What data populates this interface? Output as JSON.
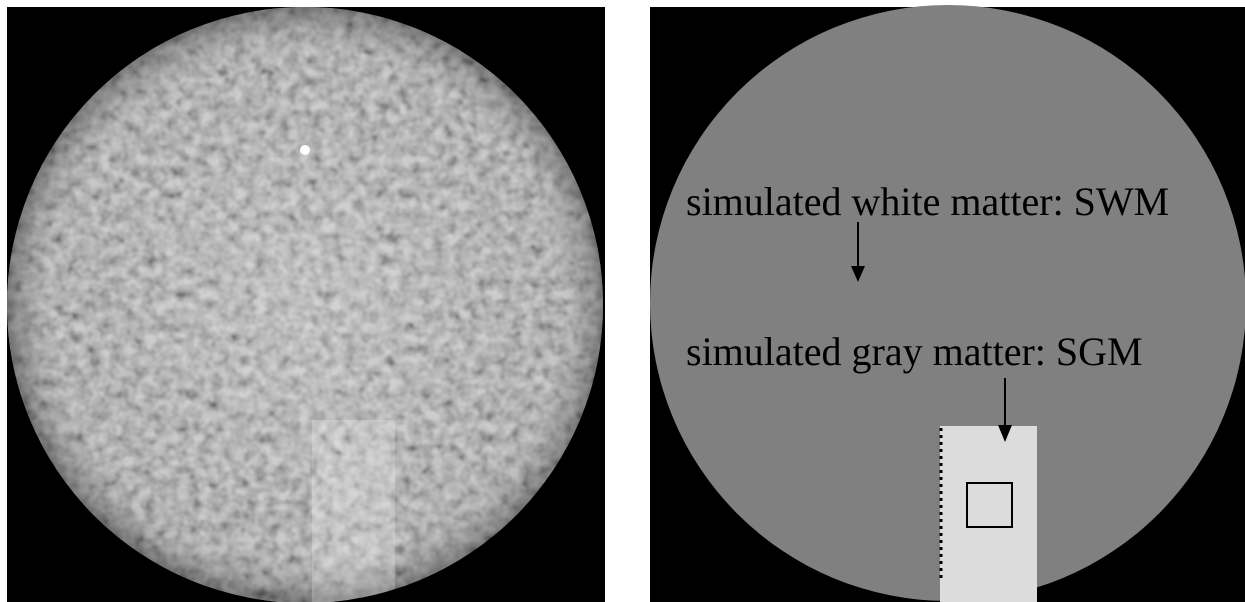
{
  "labels": {
    "white_matter": "simulated white matter: SWM",
    "gray_matter": "simulated gray matter: SGM"
  }
}
